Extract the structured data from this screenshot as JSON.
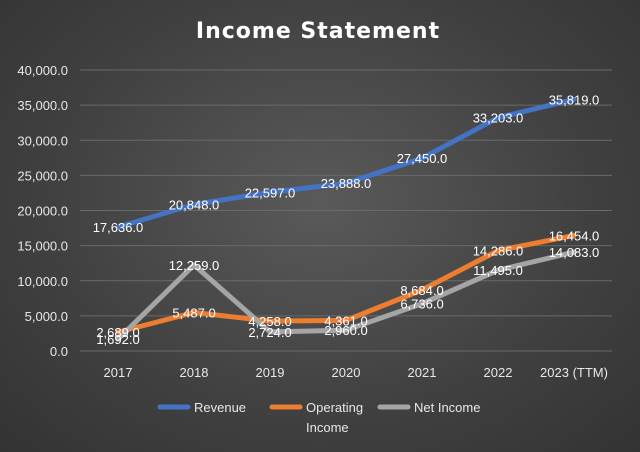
{
  "chart_data": {
    "type": "line",
    "title": "Income Statement",
    "categories": [
      "2017",
      "2018",
      "2019",
      "2020",
      "2021",
      "2022",
      "2023 (TTM)"
    ],
    "ylim": [
      0,
      40000
    ],
    "yticks": [
      "0.0",
      "5,000.0",
      "10,000.0",
      "15,000.0",
      "20,000.0",
      "25,000.0",
      "30,000.0",
      "35,000.0",
      "40,000.0"
    ],
    "grid": true,
    "legend_position": "bottom",
    "series": [
      {
        "name": "Revenue",
        "legend_lines": [
          "Revenue"
        ],
        "color": "#4472c4",
        "values": [
          17636,
          20848,
          22597,
          23888,
          27450,
          33203,
          35819
        ],
        "labels": [
          "17,636.0",
          "20,848.0",
          "22,597.0",
          "23,888.0",
          "27,450.0",
          "33,203.0",
          "35,819.0"
        ]
      },
      {
        "name": "Operating Income",
        "legend_lines": [
          "Operating",
          "Income"
        ],
        "color": "#ed7d31",
        "values": [
          2689,
          5487,
          4258,
          4361,
          8684,
          14286,
          16454
        ],
        "labels": [
          "2,689.0",
          "5,487.0",
          "4,258.0",
          "4,361.0",
          "8,684.0",
          "14,286.0",
          "16,454.0"
        ]
      },
      {
        "name": "Net Income",
        "legend_lines": [
          "Net Income"
        ],
        "color": "#a5a5a5",
        "values": [
          1692,
          12259,
          2724,
          2960,
          6736,
          11495,
          14083
        ],
        "labels": [
          "1,692.0",
          "12,259.0",
          "2,724.0",
          "2,960.0",
          "6,736.0",
          "11,495.0",
          "14,083.0"
        ]
      }
    ]
  }
}
